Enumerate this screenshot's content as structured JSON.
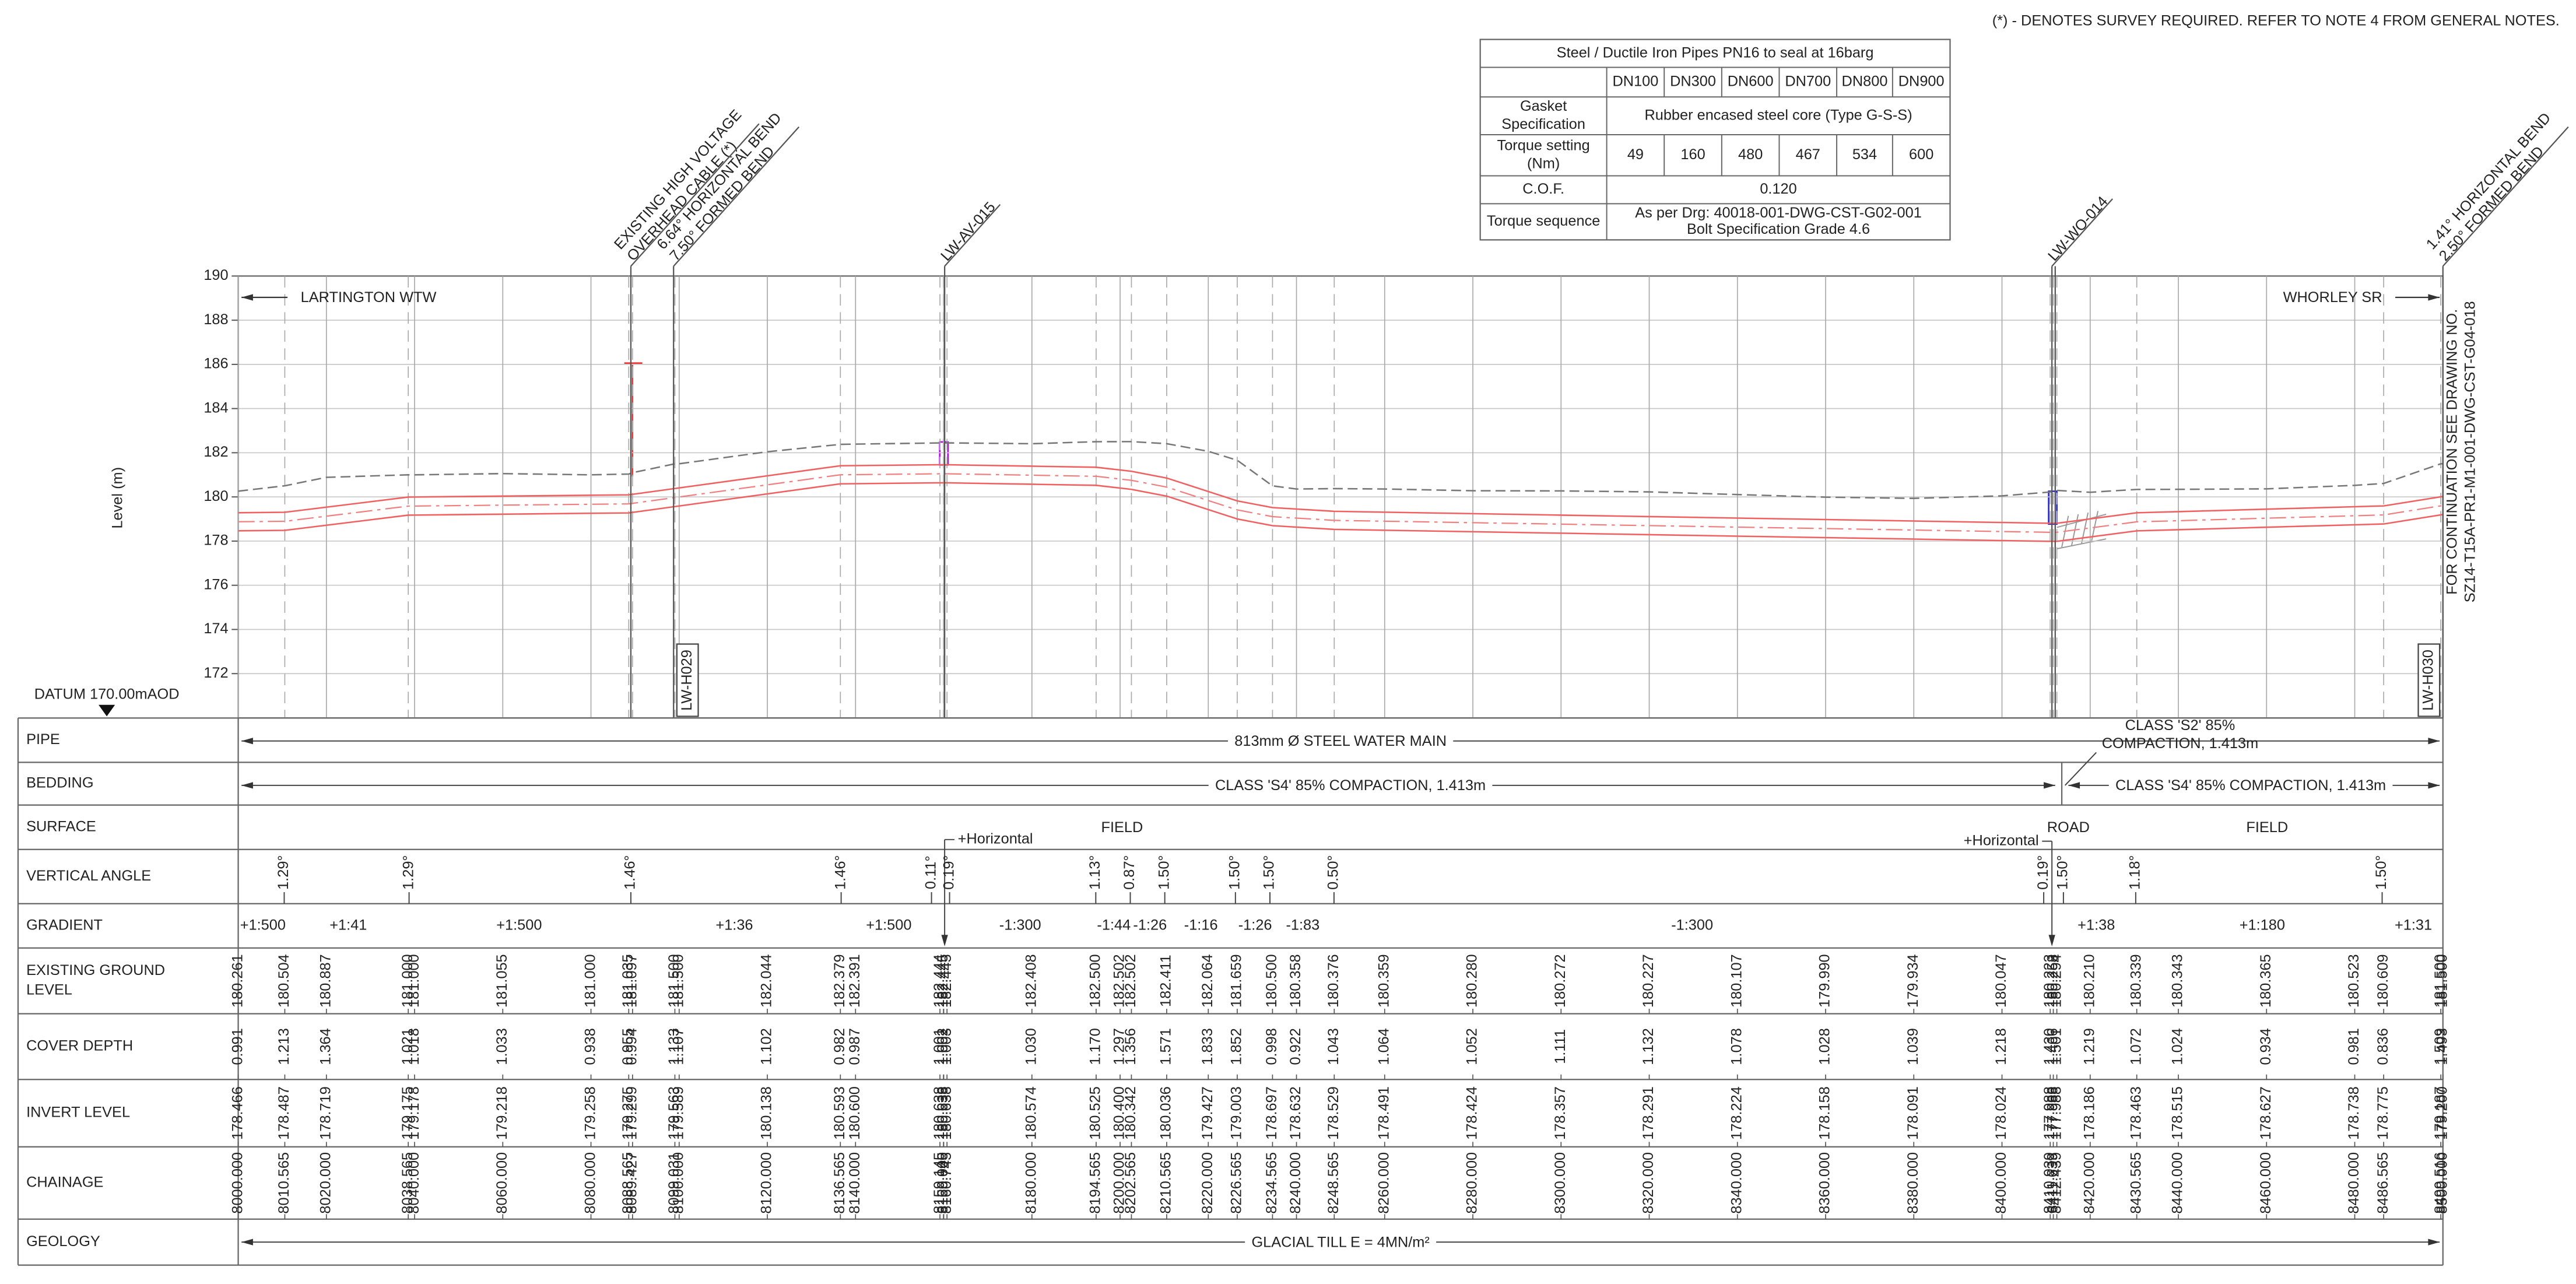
{
  "note": "(*) - DENOTES SURVEY REQUIRED. REFER TO NOTE 4 FROM GENERAL NOTES.",
  "spec_table": {
    "title": "Steel / Ductile Iron Pipes PN16 to seal at 16barg",
    "sizes": [
      "DN100",
      "DN300",
      "DN600",
      "DN700",
      "DN800",
      "DN900"
    ],
    "gasket": {
      "label": [
        "Gasket",
        "Specification"
      ],
      "value": "Rubber encased steel core (Type G-S-S)"
    },
    "torque": {
      "label": [
        "Torque setting",
        "(Nm)"
      ],
      "values": [
        "49",
        "160",
        "480",
        "467",
        "534",
        "600"
      ]
    },
    "cof": {
      "label": "C.O.F.",
      "value": "0.120"
    },
    "sequence": {
      "label": "Torque sequence",
      "value": [
        "As per Drg: 40018-001-DWG-CST-G02-001",
        "Bolt Specification Grade 4.6"
      ]
    }
  },
  "profile": {
    "axis_label": "Level (m)",
    "level_ticks": [
      172,
      174,
      176,
      178,
      180,
      182,
      184,
      186,
      188,
      190
    ],
    "start": "LARTINGTON WTW",
    "end": "WHORLEY SR",
    "annotations": [
      {
        "lines": [
          "EXISTING HIGH VOLTAGE",
          "OVERHEAD CABLE (*)"
        ]
      },
      {
        "lines": [
          "6.64° HORIZONTAL BEND",
          "7.50° FORMED BEND"
        ]
      },
      {
        "lines": [
          "LW-AV-015"
        ]
      },
      {
        "lines": [
          "LW-WO-014"
        ]
      },
      {
        "lines": [
          "1.41° HORIZONTAL BEND",
          "2.50° FORMED BEND"
        ]
      }
    ],
    "hydrants": [
      "LW-H029",
      "LW-H030"
    ],
    "continuation": [
      "FOR CONTINUATION SEE DRAWING NO.",
      "SZ14-T15A-PR1-M1-001-DWG-CST-G04-018"
    ],
    "datum": "DATUM 170.00mAOD"
  },
  "section_table": {
    "row_labels": [
      [
        "PIPE"
      ],
      [
        "BEDDING"
      ],
      [
        "SURFACE"
      ],
      [
        "VERTICAL ANGLE"
      ],
      [
        "GRADIENT"
      ],
      [
        "EXISTING GROUND",
        "LEVEL"
      ],
      [
        "COVER DEPTH"
      ],
      [
        "INVERT LEVEL"
      ],
      [
        "CHAINAGE"
      ],
      [
        "GEOLOGY"
      ]
    ],
    "pipe": "813mm Ø STEEL WATER MAIN",
    "bedding": [
      "CLASS 'S4' 85% COMPACTION, 1.413m",
      "CLASS 'S4' 85% COMPACTION, 1.413m"
    ],
    "bedding_note": [
      "CLASS 'S2' 85%",
      "COMPACTION, 1.413m"
    ],
    "surface": [
      "FIELD",
      "ROAD",
      "FIELD"
    ],
    "surface_notes": [
      "+Horizontal",
      "+Horizontal"
    ],
    "vertical_angles": [
      "1.29°",
      "1.29°",
      "1.46°",
      "1.46°",
      "0.11°",
      "0.19°",
      "1.13°",
      "0.87°",
      "1.50°",
      "1.50°",
      "1.50°",
      "0.50°",
      "0.19°",
      "1.50°",
      "1.18°",
      "1.50°"
    ],
    "gradients": [
      "+1:500",
      "+1:41",
      "+1:500",
      "+1:36",
      "+1:500",
      "-1:300",
      "-1:44",
      "-1:26",
      "-1:16",
      "-1:26",
      "-1:83",
      "-1:300",
      "+1:38",
      "+1:180",
      "+1:31"
    ],
    "stations": {
      "chainage": [
        "8000.000",
        "8010.565",
        "8020.000",
        "8038.565",
        "8040.000",
        "8060.000",
        "8080.000",
        "8088.565",
        "8089.427",
        "8099.031",
        "8100.000",
        "8120.000",
        "8136.565",
        "8140.000",
        "8159.145",
        "8159.945",
        "8160.000",
        "8160.745",
        "8180.000",
        "8194.565",
        "8200.000",
        "8202.565",
        "8210.565",
        "8220.000",
        "8226.565",
        "8234.565",
        "8240.000",
        "8248.565",
        "8260.000",
        "8280.000",
        "8300.000",
        "8320.000",
        "8340.000",
        "8360.000",
        "8380.000",
        "8400.000",
        "8410.939",
        "8411.639",
        "8412.439",
        "8420.000",
        "8430.565",
        "8440.000",
        "8460.000",
        "8480.000",
        "8486.565",
        "8499.516",
        "8500.000"
      ],
      "ground_level": [
        "180.261",
        "180.504",
        "180.887",
        "181.000",
        "181.000",
        "181.055",
        "181.000",
        "181.035",
        "181.097",
        "181.500",
        "181.500",
        "182.044",
        "182.379",
        "182.391",
        "182.444",
        "182.445",
        "182.445",
        "182.445",
        "182.408",
        "182.500",
        "182.502",
        "182.502",
        "182.411",
        "182.064",
        "181.659",
        "180.500",
        "180.358",
        "180.376",
        "180.359",
        "180.280",
        "180.272",
        "180.227",
        "180.107",
        "179.990",
        "179.934",
        "180.047",
        "180.223",
        "180.258",
        "180.294",
        "180.210",
        "180.339",
        "180.343",
        "180.365",
        "180.523",
        "180.609",
        "181.500",
        "181.500"
      ],
      "cover_depth": [
        "0.991",
        "1.213",
        "1.364",
        "1.021",
        "1.018",
        "1.033",
        "0.938",
        "0.955",
        "0.994",
        "1.133",
        "1.107",
        "1.102",
        "0.982",
        "0.987",
        "1.001",
        "1.002",
        "1.002",
        "1.003",
        "1.030",
        "1.170",
        "1.297",
        "1.356",
        "1.571",
        "1.833",
        "1.852",
        "0.998",
        "0.922",
        "1.043",
        "1.064",
        "1.052",
        "1.111",
        "1.132",
        "1.078",
        "1.028",
        "1.039",
        "1.218",
        "1.430",
        "1.466",
        "1.501",
        "1.219",
        "1.072",
        "1.024",
        "0.934",
        "0.981",
        "0.836",
        "1.509",
        "1.493"
      ],
      "invert_level": [
        "178.466",
        "178.487",
        "178.719",
        "179.175",
        "179.178",
        "179.218",
        "179.258",
        "179.275",
        "179.299",
        "179.563",
        "179.589",
        "180.138",
        "180.593",
        "180.600",
        "180.638",
        "180.638",
        "180.638",
        "180.638",
        "180.574",
        "180.525",
        "180.400",
        "180.342",
        "180.036",
        "179.427",
        "179.003",
        "178.697",
        "178.632",
        "178.529",
        "178.491",
        "178.424",
        "178.357",
        "178.291",
        "178.224",
        "178.158",
        "178.091",
        "178.024",
        "177.988",
        "177.988",
        "177.988",
        "178.186",
        "178.463",
        "178.515",
        "178.627",
        "178.738",
        "178.775",
        "179.187",
        "179.200"
      ]
    },
    "geology": "GLACIAL TILL E = 4MN/m²"
  }
}
